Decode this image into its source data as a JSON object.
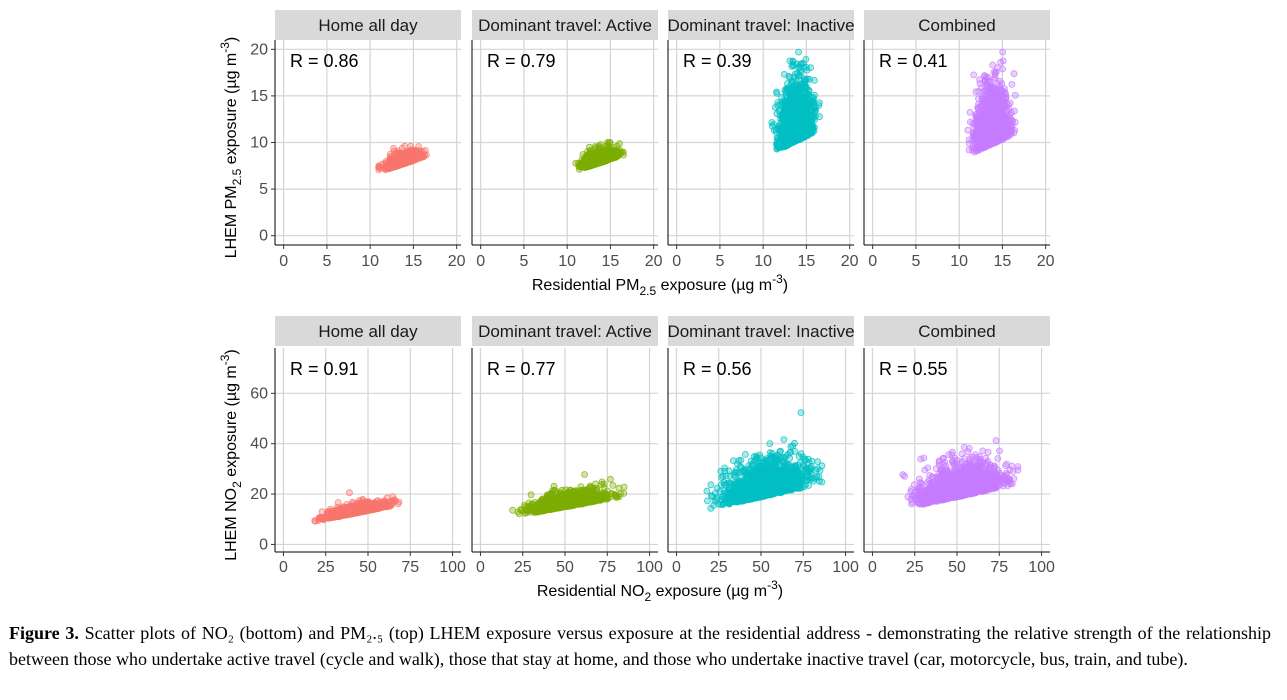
{
  "chart_data": [
    {
      "type": "scatter",
      "facets": [
        {
          "title": "Home all day",
          "r_label": "R = 0.86",
          "color": "#F8766D",
          "cloud": {
            "x_range": [
              11,
              16.5
            ],
            "y_range": [
              6.2,
              9.6
            ],
            "slope": 0.62,
            "spread": 0.6,
            "n": 900
          }
        },
        {
          "title": "Dominant travel: Active",
          "r_label": "R = 0.79",
          "color": "#7CAE00",
          "cloud": {
            "x_range": [
              11,
              16.5
            ],
            "y_range": [
              6.3,
              10
            ],
            "slope": 0.6,
            "spread": 0.7,
            "n": 900
          }
        },
        {
          "title": "Dominant travel: Inactive",
          "r_label": "R = 0.39",
          "color": "#00BFC4",
          "cloud": {
            "x_range": [
              11,
              16.5
            ],
            "y_range": [
              6.5,
              19.7
            ],
            "slope": 0.9,
            "spread": 3.2,
            "n": 1500
          }
        },
        {
          "title": "Combined",
          "r_label": "R = 0.41",
          "color": "#C77CFF",
          "cloud": {
            "x_range": [
              11,
              16.5
            ],
            "y_range": [
              6.2,
              19.7
            ],
            "slope": 0.85,
            "spread": 3.0,
            "n": 1500
          }
        }
      ],
      "x_ticks": [
        0,
        5,
        10,
        15,
        20
      ],
      "y_ticks": [
        0,
        5,
        10,
        15,
        20
      ],
      "xlim": [
        -1,
        20.5
      ],
      "ylim": [
        -1,
        21
      ],
      "xlabel": {
        "pre": "Residential PM",
        "sub": "2.5",
        "post": " exposure (µg m",
        "sup": "-3",
        "end": ")"
      },
      "ylabel": {
        "pre": "LHEM PM",
        "sub": "2.5",
        "post": " exposure (µg m",
        "sup": "-3",
        "end": ")"
      }
    },
    {
      "type": "scatter",
      "facets": [
        {
          "title": "Home all day",
          "r_label": "R = 0.91",
          "color": "#F8766D",
          "cloud": {
            "x_range": [
              18,
              70
            ],
            "y_range": [
              6,
              23
            ],
            "slope": 0.27,
            "spread": 1.8,
            "n": 900
          }
        },
        {
          "title": "Dominant travel: Active",
          "r_label": "R = 0.77",
          "color": "#7CAE00",
          "cloud": {
            "x_range": [
              19,
              85
            ],
            "y_range": [
              7,
              29
            ],
            "slope": 0.25,
            "spread": 3.0,
            "n": 1000
          }
        },
        {
          "title": "Dominant travel: Inactive",
          "r_label": "R = 0.56",
          "color": "#00BFC4",
          "cloud": {
            "x_range": [
              18,
              86
            ],
            "y_range": [
              5,
              55
            ],
            "slope": 0.3,
            "spread": 7,
            "n": 1600
          }
        },
        {
          "title": "Combined",
          "r_label": "R = 0.55",
          "color": "#C77CFF",
          "cloud": {
            "x_range": [
              18,
              86
            ],
            "y_range": [
              5,
              55
            ],
            "slope": 0.3,
            "spread": 6.5,
            "n": 1600
          }
        }
      ],
      "x_ticks": [
        0,
        25,
        50,
        75,
        100
      ],
      "y_ticks": [
        0,
        20,
        40,
        60
      ],
      "xlim": [
        -5,
        105
      ],
      "ylim": [
        -3,
        78
      ],
      "xlabel": {
        "pre": "Residential NO",
        "sub": "2",
        "post": " exposure (µg m",
        "sup": "-3",
        "end": ")"
      },
      "ylabel": {
        "pre": "LHEM NO",
        "sub": "2",
        "post": " exposure (µg m",
        "sup": "-3",
        "end": ")"
      }
    }
  ],
  "caption": {
    "label": "Figure 3.",
    "text": " Scatter plots of NO₂ (bottom) and PM₂.₅ (top) LHEM exposure versus exposure at the residential address - demonstrating the relative strength of the relationship between those who undertake active travel (cycle and walk), those that stay at home, and those who undertake inactive travel (car, motorcycle, bus, train, and tube)."
  }
}
